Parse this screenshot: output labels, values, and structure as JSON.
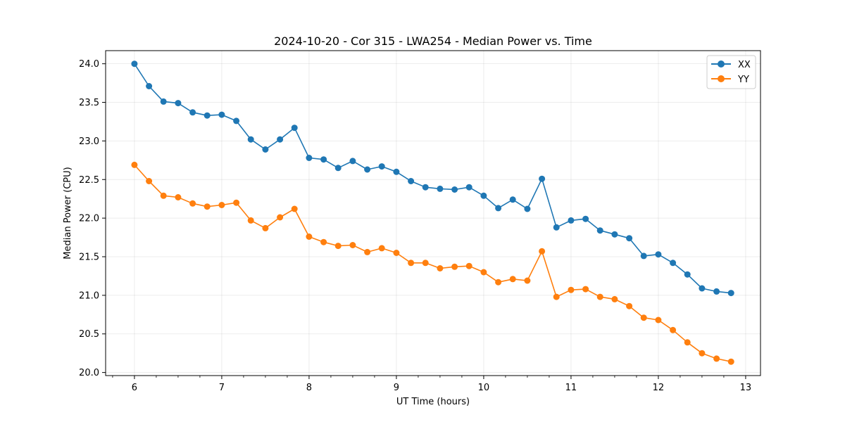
{
  "chart_data": {
    "type": "line",
    "title": "2024-10-20 - Cor 315 - LWA254 - Median Power vs. Time",
    "xlabel": "UT Time (hours)",
    "ylabel": "Median Power (CPU)",
    "xlim": [
      5.67,
      13.17
    ],
    "ylim": [
      19.96,
      24.17
    ],
    "xticks": [
      6,
      7,
      8,
      9,
      10,
      11,
      12,
      13
    ],
    "yticks": [
      20.0,
      20.5,
      21.0,
      21.5,
      22.0,
      22.5,
      23.0,
      23.5,
      24.0
    ],
    "ytick_labels": [
      "20.0",
      "20.5",
      "21.0",
      "21.5",
      "22.0",
      "22.5",
      "23.0",
      "23.5",
      "24.0"
    ],
    "grid": true,
    "legend_position": "top-right",
    "x": [
      6.0,
      6.167,
      6.333,
      6.5,
      6.667,
      6.833,
      7.0,
      7.167,
      7.333,
      7.5,
      7.667,
      7.833,
      8.0,
      8.167,
      8.333,
      8.5,
      8.667,
      8.833,
      9.0,
      9.167,
      9.333,
      9.5,
      9.667,
      9.833,
      10.0,
      10.167,
      10.333,
      10.5,
      10.667,
      10.833,
      11.0,
      11.167,
      11.333,
      11.5,
      11.667,
      11.833,
      12.0,
      12.167,
      12.333,
      12.5,
      12.667,
      12.833
    ],
    "series": [
      {
        "name": "XX",
        "color": "#1f77b4",
        "values": [
          24.0,
          23.71,
          23.51,
          23.49,
          23.37,
          23.33,
          23.34,
          23.26,
          23.02,
          22.89,
          23.02,
          23.17,
          22.78,
          22.76,
          22.65,
          22.74,
          22.63,
          22.67,
          22.6,
          22.48,
          22.4,
          22.38,
          22.37,
          22.4,
          22.29,
          22.13,
          22.24,
          22.12,
          22.51,
          21.88,
          21.97,
          21.99,
          21.84,
          21.79,
          21.74,
          21.51,
          21.53,
          21.42,
          21.27,
          21.09,
          21.05,
          21.03
        ]
      },
      {
        "name": "YY",
        "color": "#ff7f0e",
        "values": [
          22.69,
          22.48,
          22.29,
          22.27,
          22.19,
          22.15,
          22.17,
          22.2,
          21.97,
          21.87,
          22.01,
          22.12,
          21.76,
          21.69,
          21.64,
          21.65,
          21.56,
          21.61,
          21.55,
          21.42,
          21.42,
          21.35,
          21.37,
          21.38,
          21.3,
          21.17,
          21.21,
          21.19,
          21.57,
          20.98,
          21.07,
          21.08,
          20.98,
          20.95,
          20.86,
          20.71,
          20.68,
          20.55,
          20.39,
          20.25,
          20.18,
          20.14
        ]
      }
    ]
  }
}
